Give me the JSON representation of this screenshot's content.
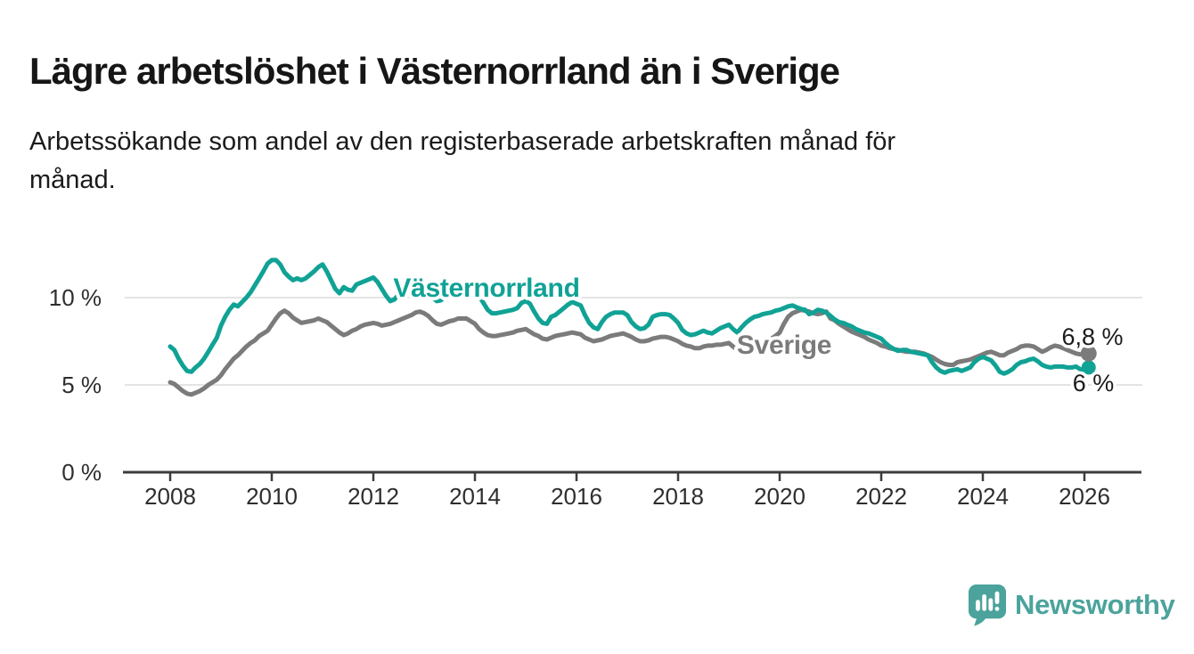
{
  "header": {
    "title": "Lägre arbetslöshet i Västernorrland än i Sverige",
    "subtitle_line1": "Arbetssökande som andel av den registerbaserade arbetskraften månad för",
    "subtitle_line2": "månad."
  },
  "footer": {
    "brand": "Newsworthy",
    "brand_color": "#4BA39C",
    "logo_icon": "newsworthy-chart-bubble-icon"
  },
  "chart_data": {
    "type": "line",
    "title": "Lägre arbetslöshet i Västernorrland än i Sverige",
    "subtitle": "Arbetssökande som andel av den registerbaserade arbetskraften månad för månad.",
    "unit": "%",
    "grid": "horizontal",
    "legend": "inline-labels",
    "xlim": [
      2007.8,
      2027
    ],
    "ylim": [
      0,
      13
    ],
    "x_start": 2008,
    "points_per_year": 12,
    "x_ticks": [
      2008,
      2010,
      2012,
      2014,
      2016,
      2018,
      2020,
      2022,
      2024,
      2026
    ],
    "y_ticks": [
      {
        "value": 0,
        "label": "0 %"
      },
      {
        "value": 5,
        "label": "5 %"
      },
      {
        "value": 10,
        "label": "10 %"
      }
    ],
    "colors": {
      "grid": "#E4E4E4",
      "axis": "#3C3C3C",
      "tick_text": "#2E2E2E",
      "annotation_text": "#1B1B1B"
    },
    "series": [
      {
        "name": "Västernorrland",
        "color": "#10A295",
        "end_label": "6 %",
        "dot_radius": 8,
        "name_label_pos": {
          "x": 546,
          "y": 333
        },
        "end_label_pos": {
          "x": 1227,
          "y": 439
        },
        "values": [
          7.2,
          7.0,
          6.5,
          6.1,
          5.8,
          5.75,
          6.0,
          6.2,
          6.5,
          6.9,
          7.3,
          7.7,
          8.4,
          8.9,
          9.3,
          9.6,
          9.5,
          9.75,
          10.0,
          10.3,
          10.7,
          11.1,
          11.5,
          11.95,
          12.15,
          12.15,
          11.9,
          11.45,
          11.2,
          11.0,
          11.1,
          11.0,
          11.1,
          11.3,
          11.5,
          11.75,
          11.9,
          11.5,
          11.0,
          10.5,
          10.25,
          10.6,
          10.45,
          10.4,
          10.75,
          10.85,
          10.95,
          11.05,
          11.15,
          10.9,
          10.5,
          10.1,
          9.8,
          9.9,
          10.2,
          10.45,
          10.6,
          10.7,
          10.75,
          10.65,
          10.55,
          10.3,
          10.0,
          9.8,
          9.85,
          10.1,
          10.3,
          10.45,
          10.55,
          10.6,
          10.6,
          10.55,
          10.4,
          10.1,
          9.7,
          9.3,
          9.1,
          9.1,
          9.15,
          9.2,
          9.25,
          9.3,
          9.4,
          9.7,
          9.8,
          9.65,
          9.2,
          8.8,
          8.55,
          8.5,
          8.9,
          9.0,
          9.2,
          9.4,
          9.6,
          9.75,
          9.65,
          9.55,
          9.0,
          8.55,
          8.3,
          8.2,
          8.6,
          8.9,
          9.05,
          9.15,
          9.15,
          9.15,
          9.0,
          8.6,
          8.35,
          8.2,
          8.25,
          8.45,
          8.9,
          9.0,
          9.05,
          9.05,
          9.0,
          8.8,
          8.55,
          8.15,
          7.95,
          7.85,
          7.9,
          8.0,
          8.1,
          8.0,
          7.95,
          8.1,
          8.25,
          8.35,
          8.45,
          8.2,
          8.0,
          8.3,
          8.55,
          8.75,
          8.9,
          8.95,
          9.05,
          9.1,
          9.15,
          9.25,
          9.3,
          9.4,
          9.5,
          9.55,
          9.45,
          9.35,
          9.3,
          9.05,
          9.15,
          9.3,
          9.25,
          9.15,
          8.95,
          8.75,
          8.6,
          8.55,
          8.45,
          8.35,
          8.2,
          8.1,
          8.0,
          7.95,
          7.85,
          7.75,
          7.65,
          7.4,
          7.2,
          7.05,
          6.95,
          7.0,
          7.0,
          6.9,
          6.85,
          6.8,
          6.75,
          6.7,
          6.3,
          6.0,
          5.8,
          5.7,
          5.8,
          5.85,
          5.9,
          5.8,
          5.9,
          6.0,
          6.3,
          6.5,
          6.6,
          6.5,
          6.4,
          6.1,
          5.75,
          5.65,
          5.75,
          5.9,
          6.15,
          6.3,
          6.35,
          6.45,
          6.5,
          6.35,
          6.15,
          6.05,
          6.0,
          6.05,
          6.05,
          6.05,
          6.0,
          6.0,
          6.05,
          5.9,
          5.85,
          6.0
        ]
      },
      {
        "name": "Sverige",
        "color": "#7B7B7B",
        "end_label": "6,8 %",
        "dot_radius": 9,
        "name_label_pos": {
          "x": 880,
          "y": 397
        },
        "end_label_pos": {
          "x": 1226,
          "y": 387
        },
        "values": [
          5.15,
          5.05,
          4.85,
          4.65,
          4.5,
          4.45,
          4.55,
          4.65,
          4.8,
          5.0,
          5.15,
          5.3,
          5.55,
          5.9,
          6.2,
          6.5,
          6.7,
          6.95,
          7.2,
          7.4,
          7.55,
          7.8,
          7.95,
          8.1,
          8.45,
          8.8,
          9.1,
          9.25,
          9.1,
          8.85,
          8.7,
          8.55,
          8.6,
          8.65,
          8.7,
          8.8,
          8.7,
          8.6,
          8.4,
          8.2,
          8.0,
          7.85,
          7.95,
          8.1,
          8.2,
          8.35,
          8.45,
          8.5,
          8.55,
          8.5,
          8.4,
          8.45,
          8.5,
          8.6,
          8.7,
          8.8,
          8.9,
          9.0,
          9.15,
          9.2,
          9.1,
          8.95,
          8.7,
          8.5,
          8.45,
          8.55,
          8.65,
          8.7,
          8.8,
          8.8,
          8.8,
          8.65,
          8.5,
          8.2,
          8.0,
          7.85,
          7.8,
          7.8,
          7.85,
          7.9,
          7.95,
          8.0,
          8.1,
          8.15,
          8.2,
          8.05,
          7.9,
          7.8,
          7.65,
          7.6,
          7.7,
          7.8,
          7.85,
          7.9,
          7.95,
          8.0,
          7.95,
          7.9,
          7.7,
          7.6,
          7.5,
          7.55,
          7.6,
          7.7,
          7.8,
          7.85,
          7.9,
          7.95,
          7.85,
          7.75,
          7.6,
          7.5,
          7.5,
          7.55,
          7.65,
          7.7,
          7.75,
          7.75,
          7.7,
          7.6,
          7.5,
          7.35,
          7.25,
          7.2,
          7.1,
          7.1,
          7.2,
          7.25,
          7.25,
          7.3,
          7.3,
          7.35,
          7.4,
          7.2,
          7.0,
          6.9,
          6.8,
          6.8,
          6.95,
          7.2,
          7.35,
          7.5,
          7.65,
          7.8,
          8.0,
          8.5,
          8.9,
          9.1,
          9.2,
          9.3,
          9.25,
          9.2,
          9.1,
          9.05,
          9.1,
          9.2,
          8.8,
          8.7,
          8.5,
          8.35,
          8.2,
          8.05,
          7.95,
          7.85,
          7.75,
          7.6,
          7.5,
          7.4,
          7.25,
          7.2,
          7.1,
          7.05,
          7.0,
          6.95,
          6.9,
          6.9,
          6.9,
          6.85,
          6.8,
          6.7,
          6.6,
          6.45,
          6.3,
          6.2,
          6.15,
          6.15,
          6.3,
          6.35,
          6.4,
          6.45,
          6.55,
          6.65,
          6.75,
          6.85,
          6.9,
          6.8,
          6.7,
          6.7,
          6.85,
          6.95,
          7.05,
          7.2,
          7.25,
          7.25,
          7.2,
          7.05,
          6.9,
          7.0,
          7.15,
          7.25,
          7.2,
          7.1,
          7.0,
          6.9,
          6.8,
          6.75,
          6.75,
          6.8
        ]
      }
    ]
  }
}
